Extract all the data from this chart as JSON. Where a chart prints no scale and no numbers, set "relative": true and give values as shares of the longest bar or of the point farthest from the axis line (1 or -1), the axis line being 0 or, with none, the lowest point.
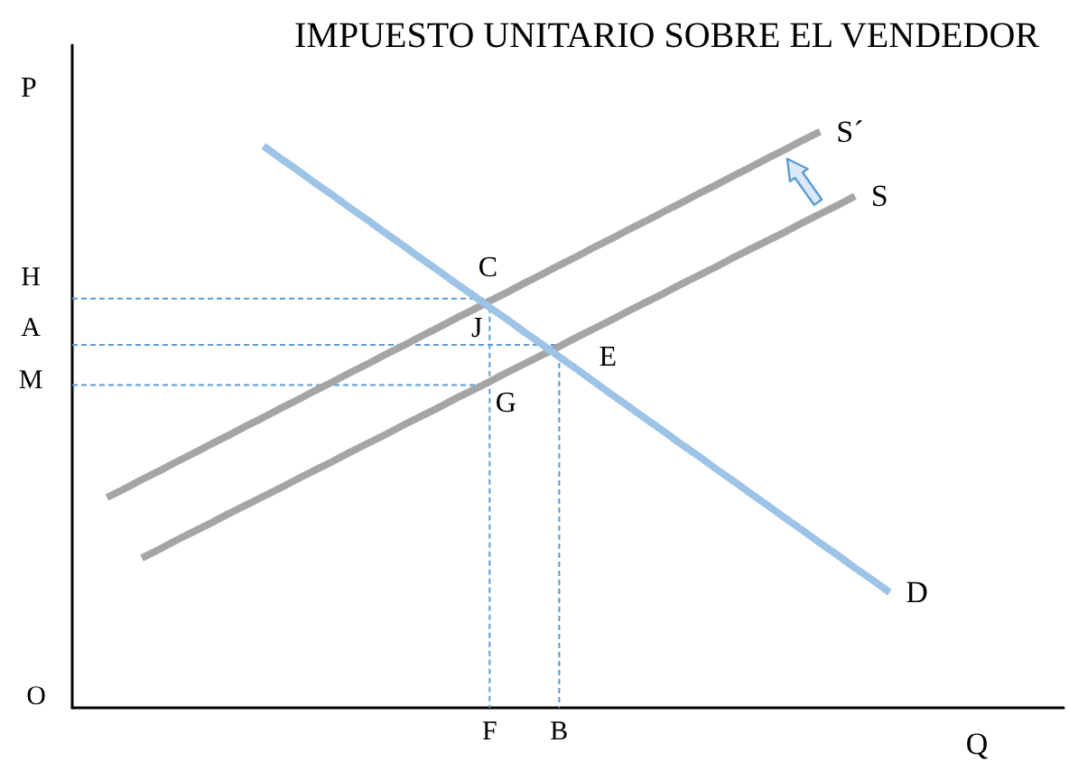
{
  "chart_data": {
    "type": "line",
    "title": "IMPUESTO UNITARIO SOBRE EL VENDEDOR",
    "xlabel": "Q",
    "ylabel": "P",
    "relative": true,
    "marker": "none",
    "categories": [
      null,
      null,
      null,
      null,
      null,
      null,
      null,
      null,
      null,
      null,
      null,
      null,
      null,
      null,
      null,
      null,
      null,
      null,
      null,
      null,
      null,
      null,
      null,
      null,
      "F",
      null,
      null,
      null,
      "B",
      null,
      null,
      null,
      null,
      null,
      null,
      null,
      null,
      null,
      null,
      null,
      null,
      null,
      null,
      null,
      null,
      null,
      null,
      null,
      null,
      null,
      null,
      null,
      null,
      null,
      null,
      null,
      null,
      null
    ],
    "series": [
      {
        "name": "S´",
        "color": "#a5a5a5",
        "values": [
          null,
          null,
          0.365,
          0.38,
          0.396,
          0.411,
          0.427,
          0.442,
          0.458,
          0.473,
          0.489,
          0.504,
          0.52,
          0.535,
          0.551,
          0.566,
          0.582,
          0.597,
          0.613,
          0.628,
          0.644,
          0.659,
          0.675,
          0.69,
          0.706,
          0.721,
          0.737,
          0.752,
          0.768,
          0.783,
          0.799,
          0.814,
          0.83,
          0.845,
          0.861,
          0.876,
          0.892,
          0.907,
          0.923,
          0.938,
          0.954,
          0.969,
          0.985,
          1,
          null,
          null,
          null,
          null,
          null,
          null,
          null,
          null,
          null,
          null,
          null,
          null,
          null,
          null
        ]
      },
      {
        "name": "S",
        "color": "#a5a5a5",
        "values": [
          null,
          null,
          null,
          null,
          0.26,
          0.275,
          0.291,
          0.306,
          0.321,
          0.337,
          0.352,
          0.367,
          0.382,
          0.398,
          0.413,
          0.428,
          0.444,
          0.459,
          0.474,
          0.49,
          0.505,
          0.52,
          0.536,
          0.551,
          0.566,
          0.582,
          0.597,
          0.612,
          0.627,
          0.643,
          0.658,
          0.673,
          0.689,
          0.704,
          0.719,
          0.735,
          0.75,
          0.765,
          0.781,
          0.796,
          0.811,
          0.826,
          0.842,
          0.857,
          0.872,
          0.888,
          null,
          null,
          null,
          null,
          null,
          null,
          null,
          null,
          null,
          null,
          null,
          null
        ]
      },
      {
        "name": "D",
        "color": "#9dc3e6",
        "values": [
          null,
          null,
          null,
          null,
          null,
          null,
          null,
          null,
          null,
          null,
          null,
          0.975,
          0.953,
          0.932,
          0.91,
          0.889,
          0.867,
          0.846,
          0.824,
          0.803,
          0.781,
          0.76,
          0.738,
          0.717,
          0.695,
          0.674,
          0.652,
          0.631,
          0.609,
          0.588,
          0.566,
          0.544,
          0.523,
          0.501,
          0.48,
          0.458,
          0.437,
          0.415,
          0.394,
          0.372,
          0.351,
          0.329,
          0.308,
          0.286,
          0.265,
          0.243,
          0.222,
          0.2,
          null,
          null,
          null,
          null,
          null,
          null,
          null,
          null,
          null,
          null
        ]
      },
      {
        "color": "#5b9bd5",
        "line_style": "dashed",
        "values": [
          0.71,
          0.71,
          0.71,
          0.71,
          0.71,
          0.71,
          0.71,
          0.71,
          0.71,
          0.71,
          0.71,
          0.71,
          0.71,
          0.71,
          0.71,
          0.71,
          0.71,
          0.71,
          0.71,
          0.71,
          0.71,
          0.71,
          0.71,
          0.71,
          0.71,
          null,
          null,
          null,
          null,
          null,
          null,
          null,
          null,
          null,
          null,
          null,
          null,
          null,
          null,
          null,
          null,
          null,
          null,
          null,
          null,
          null,
          null,
          null,
          null,
          null,
          null,
          null,
          null,
          null,
          null,
          null,
          null,
          null
        ]
      },
      {
        "color": "#5b9bd5",
        "line_style": "dashed",
        "values": [
          0.63,
          0.63,
          0.63,
          0.63,
          0.63,
          0.63,
          0.63,
          0.63,
          0.63,
          0.63,
          0.63,
          0.63,
          0.63,
          0.63,
          0.63,
          0.63,
          0.63,
          0.63,
          0.63,
          0.63,
          0.63,
          0.63,
          0.63,
          0.63,
          0.63,
          0.63,
          0.63,
          0.63,
          0.63,
          null,
          null,
          null,
          null,
          null,
          null,
          null,
          null,
          null,
          null,
          null,
          null,
          null,
          null,
          null,
          null,
          null,
          null,
          null,
          null,
          null,
          null,
          null,
          null,
          null,
          null,
          null,
          null,
          null
        ]
      },
      {
        "color": "#5b9bd5",
        "line_style": "dashed",
        "values": [
          0.56,
          0.56,
          0.56,
          0.56,
          0.56,
          0.56,
          0.56,
          0.56,
          0.56,
          0.56,
          0.56,
          0.56,
          0.56,
          0.56,
          0.56,
          0.56,
          0.56,
          0.56,
          0.56,
          0.56,
          0.56,
          0.56,
          0.56,
          0.56,
          0.56,
          null,
          null,
          null,
          null,
          null,
          null,
          null,
          null,
          null,
          null,
          null,
          null,
          null,
          null,
          null,
          null,
          null,
          null,
          null,
          null,
          null,
          null,
          null,
          null,
          null,
          null,
          null,
          null,
          null,
          null,
          null,
          null,
          null
        ]
      },
      {
        "color": "#5b9bd5",
        "line_style": "dashed",
        "x": [
          "F",
          "F"
        ],
        "values": [
          0.71,
          0
        ]
      },
      {
        "color": "#5b9bd5",
        "line_style": "dashed",
        "x": [
          "B",
          "B"
        ],
        "values": [
          0.63,
          0
        ]
      }
    ],
    "annotations": [
      {
        "text": "C",
        "x": "F",
        "y": 0.71
      },
      {
        "text": "J",
        "x": "F",
        "y": 0.63
      },
      {
        "text": "E",
        "x": "B",
        "y": 0.63
      },
      {
        "text": "G",
        "x": "F",
        "y": 0.56
      },
      "H",
      "A",
      "M",
      "O"
    ]
  }
}
